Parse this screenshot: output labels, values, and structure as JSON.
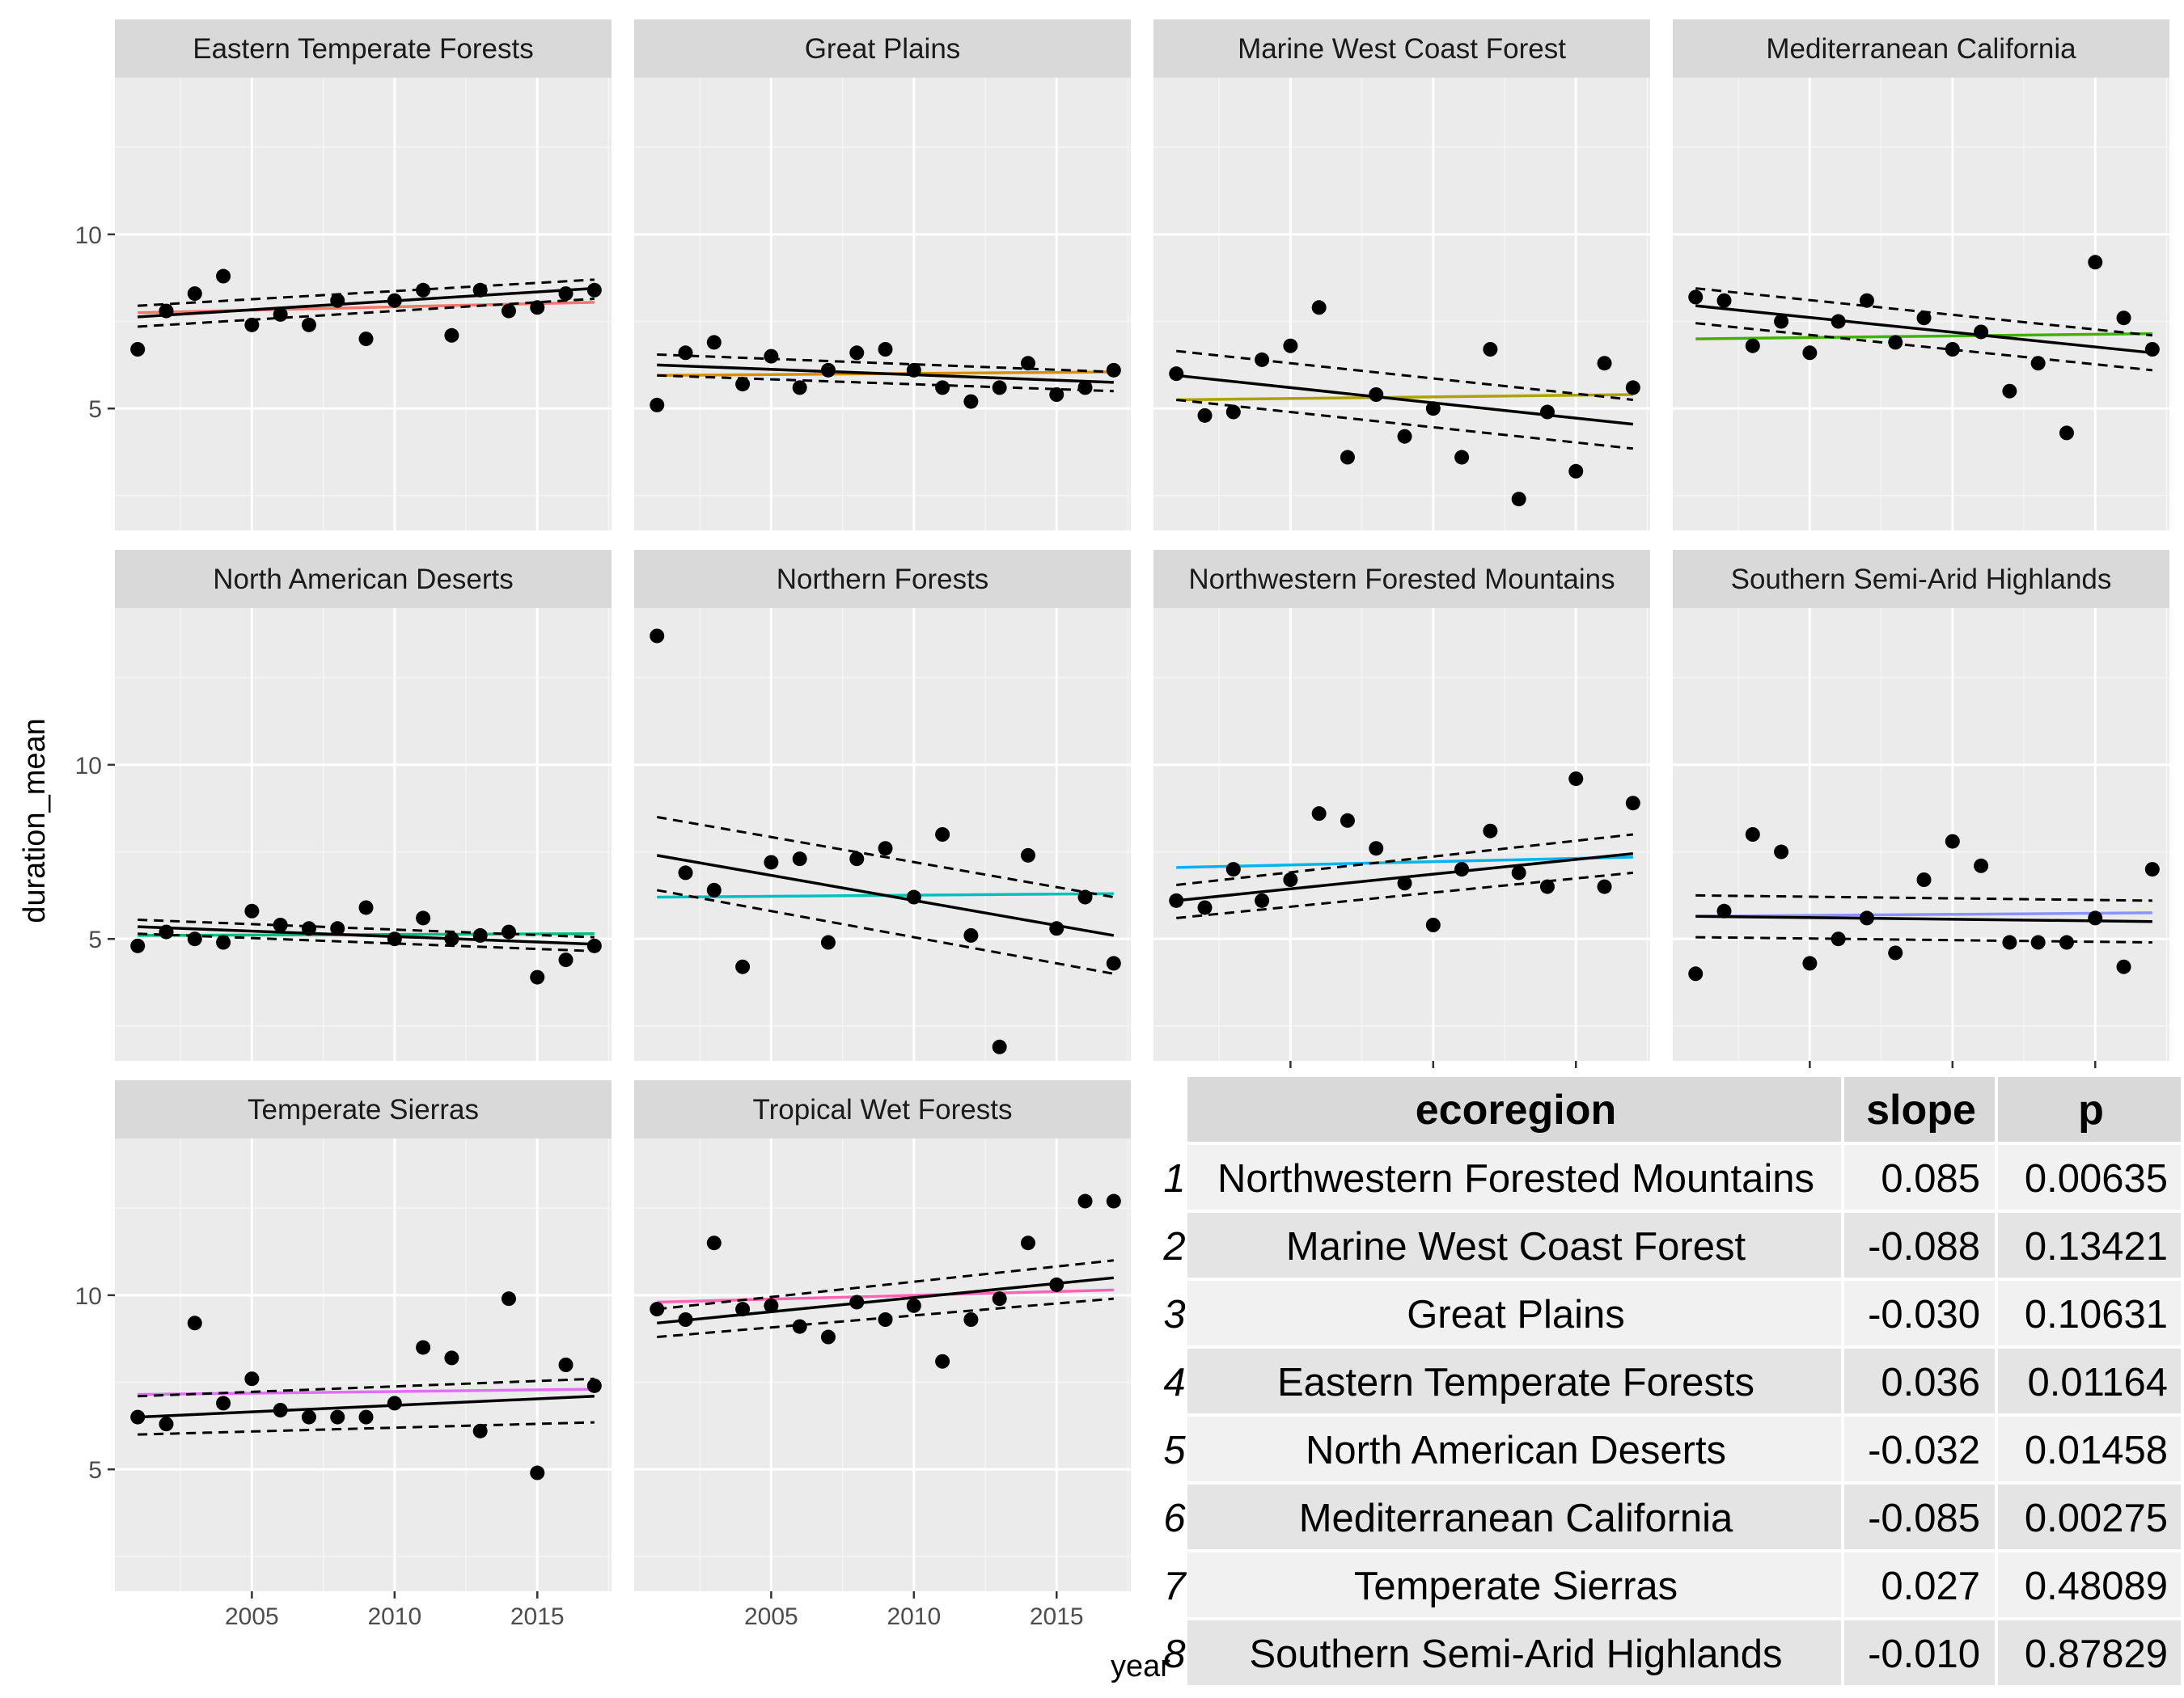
{
  "chart_data": {
    "type": "scatter",
    "facet_wrap": true,
    "xlabel": "year",
    "ylabel": "duration_mean",
    "xlim": [
      2000.2,
      2017.6
    ],
    "ylim": [
      1.5,
      14.5
    ],
    "x_ticks": [
      2005,
      2010,
      2015
    ],
    "y_ticks": [
      5,
      10
    ],
    "x_years": [
      2001,
      2002,
      2003,
      2004,
      2005,
      2006,
      2007,
      2008,
      2009,
      2010,
      2011,
      2012,
      2013,
      2014,
      2015,
      2016,
      2017
    ],
    "panels": [
      {
        "name": "Eastern Temperate Forests",
        "color": "#F8766D",
        "y": [
          6.7,
          7.8,
          8.3,
          8.8,
          7.4,
          7.7,
          7.4,
          8.1,
          7.0,
          8.1,
          8.4,
          7.1,
          8.4,
          7.8,
          7.9,
          8.3,
          8.4
        ],
        "fit": [
          7.63,
          8.45
        ],
        "fit_lower": [
          7.35,
          8.15
        ],
        "fit_upper": [
          7.95,
          8.7
        ],
        "group_mean": [
          7.75,
          8.05
        ]
      },
      {
        "name": "Great Plains",
        "color": "#DB8E00",
        "y": [
          5.1,
          6.6,
          6.9,
          5.7,
          6.5,
          5.6,
          6.1,
          6.6,
          6.7,
          6.1,
          5.6,
          5.2,
          5.6,
          6.3,
          5.4,
          5.6,
          6.1
        ],
        "fit": [
          6.25,
          5.75
        ],
        "fit_lower": [
          5.95,
          5.5
        ],
        "fit_upper": [
          6.55,
          6.05
        ],
        "group_mean": [
          5.95,
          6.05
        ]
      },
      {
        "name": "Marine West Coast Forest",
        "color": "#AEA200",
        "y": [
          6.0,
          4.8,
          4.9,
          6.4,
          6.8,
          7.9,
          3.6,
          5.4,
          4.2,
          5.0,
          3.6,
          6.7,
          2.4,
          4.9,
          3.2,
          6.3,
          5.6
        ],
        "fit": [
          5.95,
          4.55
        ],
        "fit_lower": [
          5.25,
          3.85
        ],
        "fit_upper": [
          6.65,
          5.25
        ],
        "group_mean": [
          5.25,
          5.4
        ]
      },
      {
        "name": "Mediterranean California",
        "color": "#3DB300",
        "y": [
          8.2,
          8.1,
          6.8,
          7.5,
          6.6,
          7.5,
          8.1,
          6.9,
          7.6,
          6.7,
          7.2,
          5.5,
          6.3,
          4.3,
          9.2,
          7.6,
          6.7
        ],
        "fit": [
          7.95,
          6.6
        ],
        "fit_lower": [
          7.45,
          6.1
        ],
        "fit_upper": [
          8.45,
          7.1
        ],
        "group_mean": [
          7.0,
          7.15
        ]
      },
      {
        "name": "North American Deserts",
        "color": "#00BD81",
        "y": [
          4.8,
          5.2,
          5.0,
          4.9,
          5.8,
          5.4,
          5.3,
          5.3,
          5.9,
          5.0,
          5.6,
          5.0,
          5.1,
          5.2,
          3.9,
          4.4,
          4.8
        ],
        "fit": [
          5.35,
          4.85
        ],
        "fit_lower": [
          5.15,
          4.65
        ],
        "fit_upper": [
          5.55,
          5.05
        ],
        "group_mean": [
          5.1,
          5.15
        ]
      },
      {
        "name": "Northern Forests",
        "color": "#00C1BA",
        "y": [
          13.7,
          6.9,
          6.4,
          4.2,
          7.2,
          7.3,
          4.9,
          7.3,
          7.6,
          6.2,
          8.0,
          5.1,
          1.9,
          7.4,
          5.3,
          6.2,
          4.3
        ],
        "fit": [
          7.4,
          5.1
        ],
        "fit_lower": [
          6.4,
          4.0
        ],
        "fit_upper": [
          8.5,
          6.2
        ],
        "group_mean": [
          6.2,
          6.3
        ]
      },
      {
        "name": "Northwestern Forested Mountains",
        "color": "#00B5ED",
        "y": [
          6.1,
          5.9,
          7.0,
          6.1,
          6.7,
          8.6,
          8.4,
          7.6,
          6.6,
          5.4,
          7.0,
          8.1,
          6.9,
          6.5,
          9.6,
          6.5,
          8.9
        ],
        "fit": [
          6.1,
          7.45
        ],
        "fit_lower": [
          5.6,
          6.9
        ],
        "fit_upper": [
          6.55,
          8.0
        ],
        "group_mean": [
          7.05,
          7.35
        ]
      },
      {
        "name": "Southern Semi-Arid Highlands",
        "color": "#8B93FF",
        "y": [
          4.0,
          5.8,
          8.0,
          7.5,
          4.3,
          5.0,
          5.6,
          4.6,
          6.7,
          7.8,
          7.1,
          4.9,
          4.9,
          4.9,
          5.6,
          4.2,
          7.0
        ],
        "fit": [
          5.65,
          5.5
        ],
        "fit_lower": [
          5.05,
          4.9
        ],
        "fit_upper": [
          6.25,
          6.1
        ],
        "group_mean": [
          5.65,
          5.75
        ]
      },
      {
        "name": "Temperate Sierras",
        "color": "#E36EF6",
        "y": [
          6.5,
          6.3,
          9.2,
          6.9,
          7.6,
          6.7,
          6.5,
          6.5,
          6.5,
          6.9,
          8.5,
          8.2,
          6.1,
          9.9,
          4.9,
          8.0,
          7.4
        ],
        "fit": [
          6.5,
          7.1
        ],
        "fit_lower": [
          6.0,
          6.35
        ],
        "fit_upper": [
          7.1,
          7.6
        ],
        "group_mean": [
          7.15,
          7.3
        ]
      },
      {
        "name": "Tropical Wet Forests",
        "color": "#FF63B6",
        "y": [
          9.6,
          9.3,
          11.5,
          9.6,
          9.7,
          9.1,
          8.8,
          9.8,
          9.3,
          9.7,
          8.1,
          9.3,
          9.9,
          11.5,
          10.3,
          12.7,
          12.7
        ],
        "fit": [
          9.2,
          10.5
        ],
        "fit_lower": [
          8.8,
          9.9
        ],
        "fit_upper": [
          9.6,
          11.0
        ],
        "group_mean": [
          9.8,
          10.15
        ]
      }
    ]
  },
  "table": {
    "headers": [
      "ecoregion",
      "slope",
      "p"
    ],
    "rows": [
      {
        "idx": "1",
        "ecoregion": "Northwestern Forested Mountains",
        "slope": "0.085",
        "p": "0.00635"
      },
      {
        "idx": "2",
        "ecoregion": "Marine West Coast Forest",
        "slope": "-0.088",
        "p": "0.13421"
      },
      {
        "idx": "3",
        "ecoregion": "Great Plains",
        "slope": "-0.030",
        "p": "0.10631"
      },
      {
        "idx": "4",
        "ecoregion": "Eastern Temperate Forests",
        "slope": "0.036",
        "p": "0.01164"
      },
      {
        "idx": "5",
        "ecoregion": "North American Deserts",
        "slope": "-0.032",
        "p": "0.01458"
      },
      {
        "idx": "6",
        "ecoregion": "Mediterranean California",
        "slope": "-0.085",
        "p": "0.00275"
      },
      {
        "idx": "7",
        "ecoregion": "Temperate Sierras",
        "slope": "0.027",
        "p": "0.48089"
      },
      {
        "idx": "8",
        "ecoregion": "Southern Semi-Arid Highlands",
        "slope": "-0.010",
        "p": "0.87829"
      }
    ]
  }
}
